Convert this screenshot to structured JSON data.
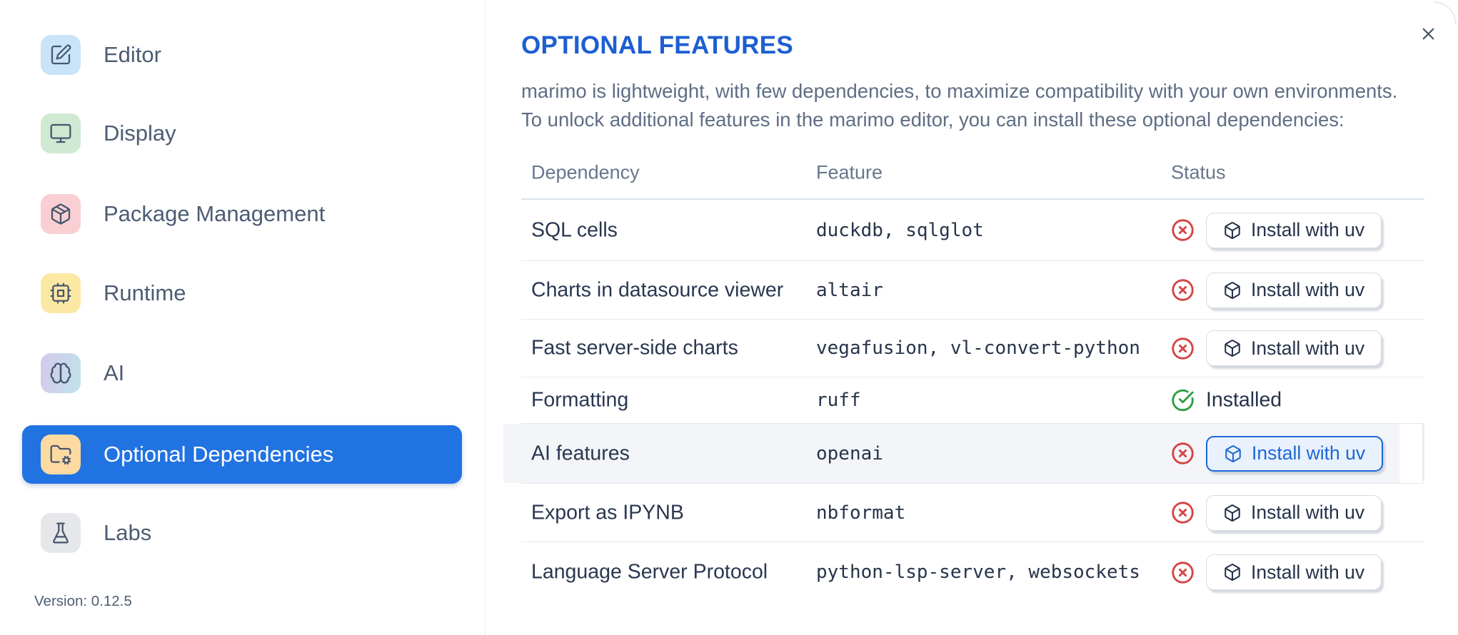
{
  "window": {
    "close_label": "close"
  },
  "sidebar": {
    "selected_color": "#2273e2",
    "items": [
      {
        "label": "Editor",
        "icon": "square-pen-icon",
        "tile_color": "#c9e4f9",
        "selected": false
      },
      {
        "label": "Display",
        "icon": "monitor-icon",
        "tile_color": "#cfe9d2",
        "selected": false
      },
      {
        "label": "Package Management",
        "icon": "package-icon",
        "tile_color": "#f9cfd3",
        "selected": false
      },
      {
        "label": "Runtime",
        "icon": "cpu-icon",
        "tile_color": "#fbe8a3",
        "selected": false
      },
      {
        "label": "AI",
        "icon": "brain-icon",
        "tile_color": "linear-gradient(100deg,#d3c9ed,#c1e2ea)",
        "selected": false
      },
      {
        "label": "Optional Dependencies",
        "icon": "folder-cog-icon",
        "tile_color": "#fcdaa1",
        "selected": true
      },
      {
        "label": "Labs",
        "icon": "flask-icon",
        "tile_color": "#e5e7ea",
        "selected": false
      }
    ],
    "version_label": "Version: 0.12.5"
  },
  "panel": {
    "title": "OPTIONAL FEATURES",
    "title_color": "#1d5ed3",
    "description_line1": "marimo is lightweight, with few dependencies, to maximize compatibility with your own environments.",
    "description_line2": "To unlock additional features in the marimo editor, you can install these optional dependencies:"
  },
  "table": {
    "headers": [
      "Dependency",
      "Feature",
      "Status"
    ],
    "install_button_label": "Install with uv",
    "installed_label": "Installed",
    "status_colors": {
      "missing": "#d64444",
      "installed": "#2f9e44"
    },
    "rows": [
      {
        "dependency": "SQL cells",
        "feature": "duckdb, sqlglot",
        "status": "missing",
        "highlighted": false
      },
      {
        "dependency": "Charts in datasource viewer",
        "feature": "altair",
        "status": "missing",
        "highlighted": false
      },
      {
        "dependency": "Fast server-side charts",
        "feature": "vegafusion, vl-convert-python",
        "status": "missing",
        "highlighted": false
      },
      {
        "dependency": "Formatting",
        "feature": "ruff",
        "status": "installed",
        "highlighted": false
      },
      {
        "dependency": "AI features",
        "feature": "openai",
        "status": "missing",
        "highlighted": true
      },
      {
        "dependency": "Export as IPYNB",
        "feature": "nbformat",
        "status": "missing",
        "highlighted": false
      },
      {
        "dependency": "Language Server Protocol",
        "feature": "python-lsp-server, websockets",
        "status": "missing",
        "highlighted": false
      }
    ]
  }
}
